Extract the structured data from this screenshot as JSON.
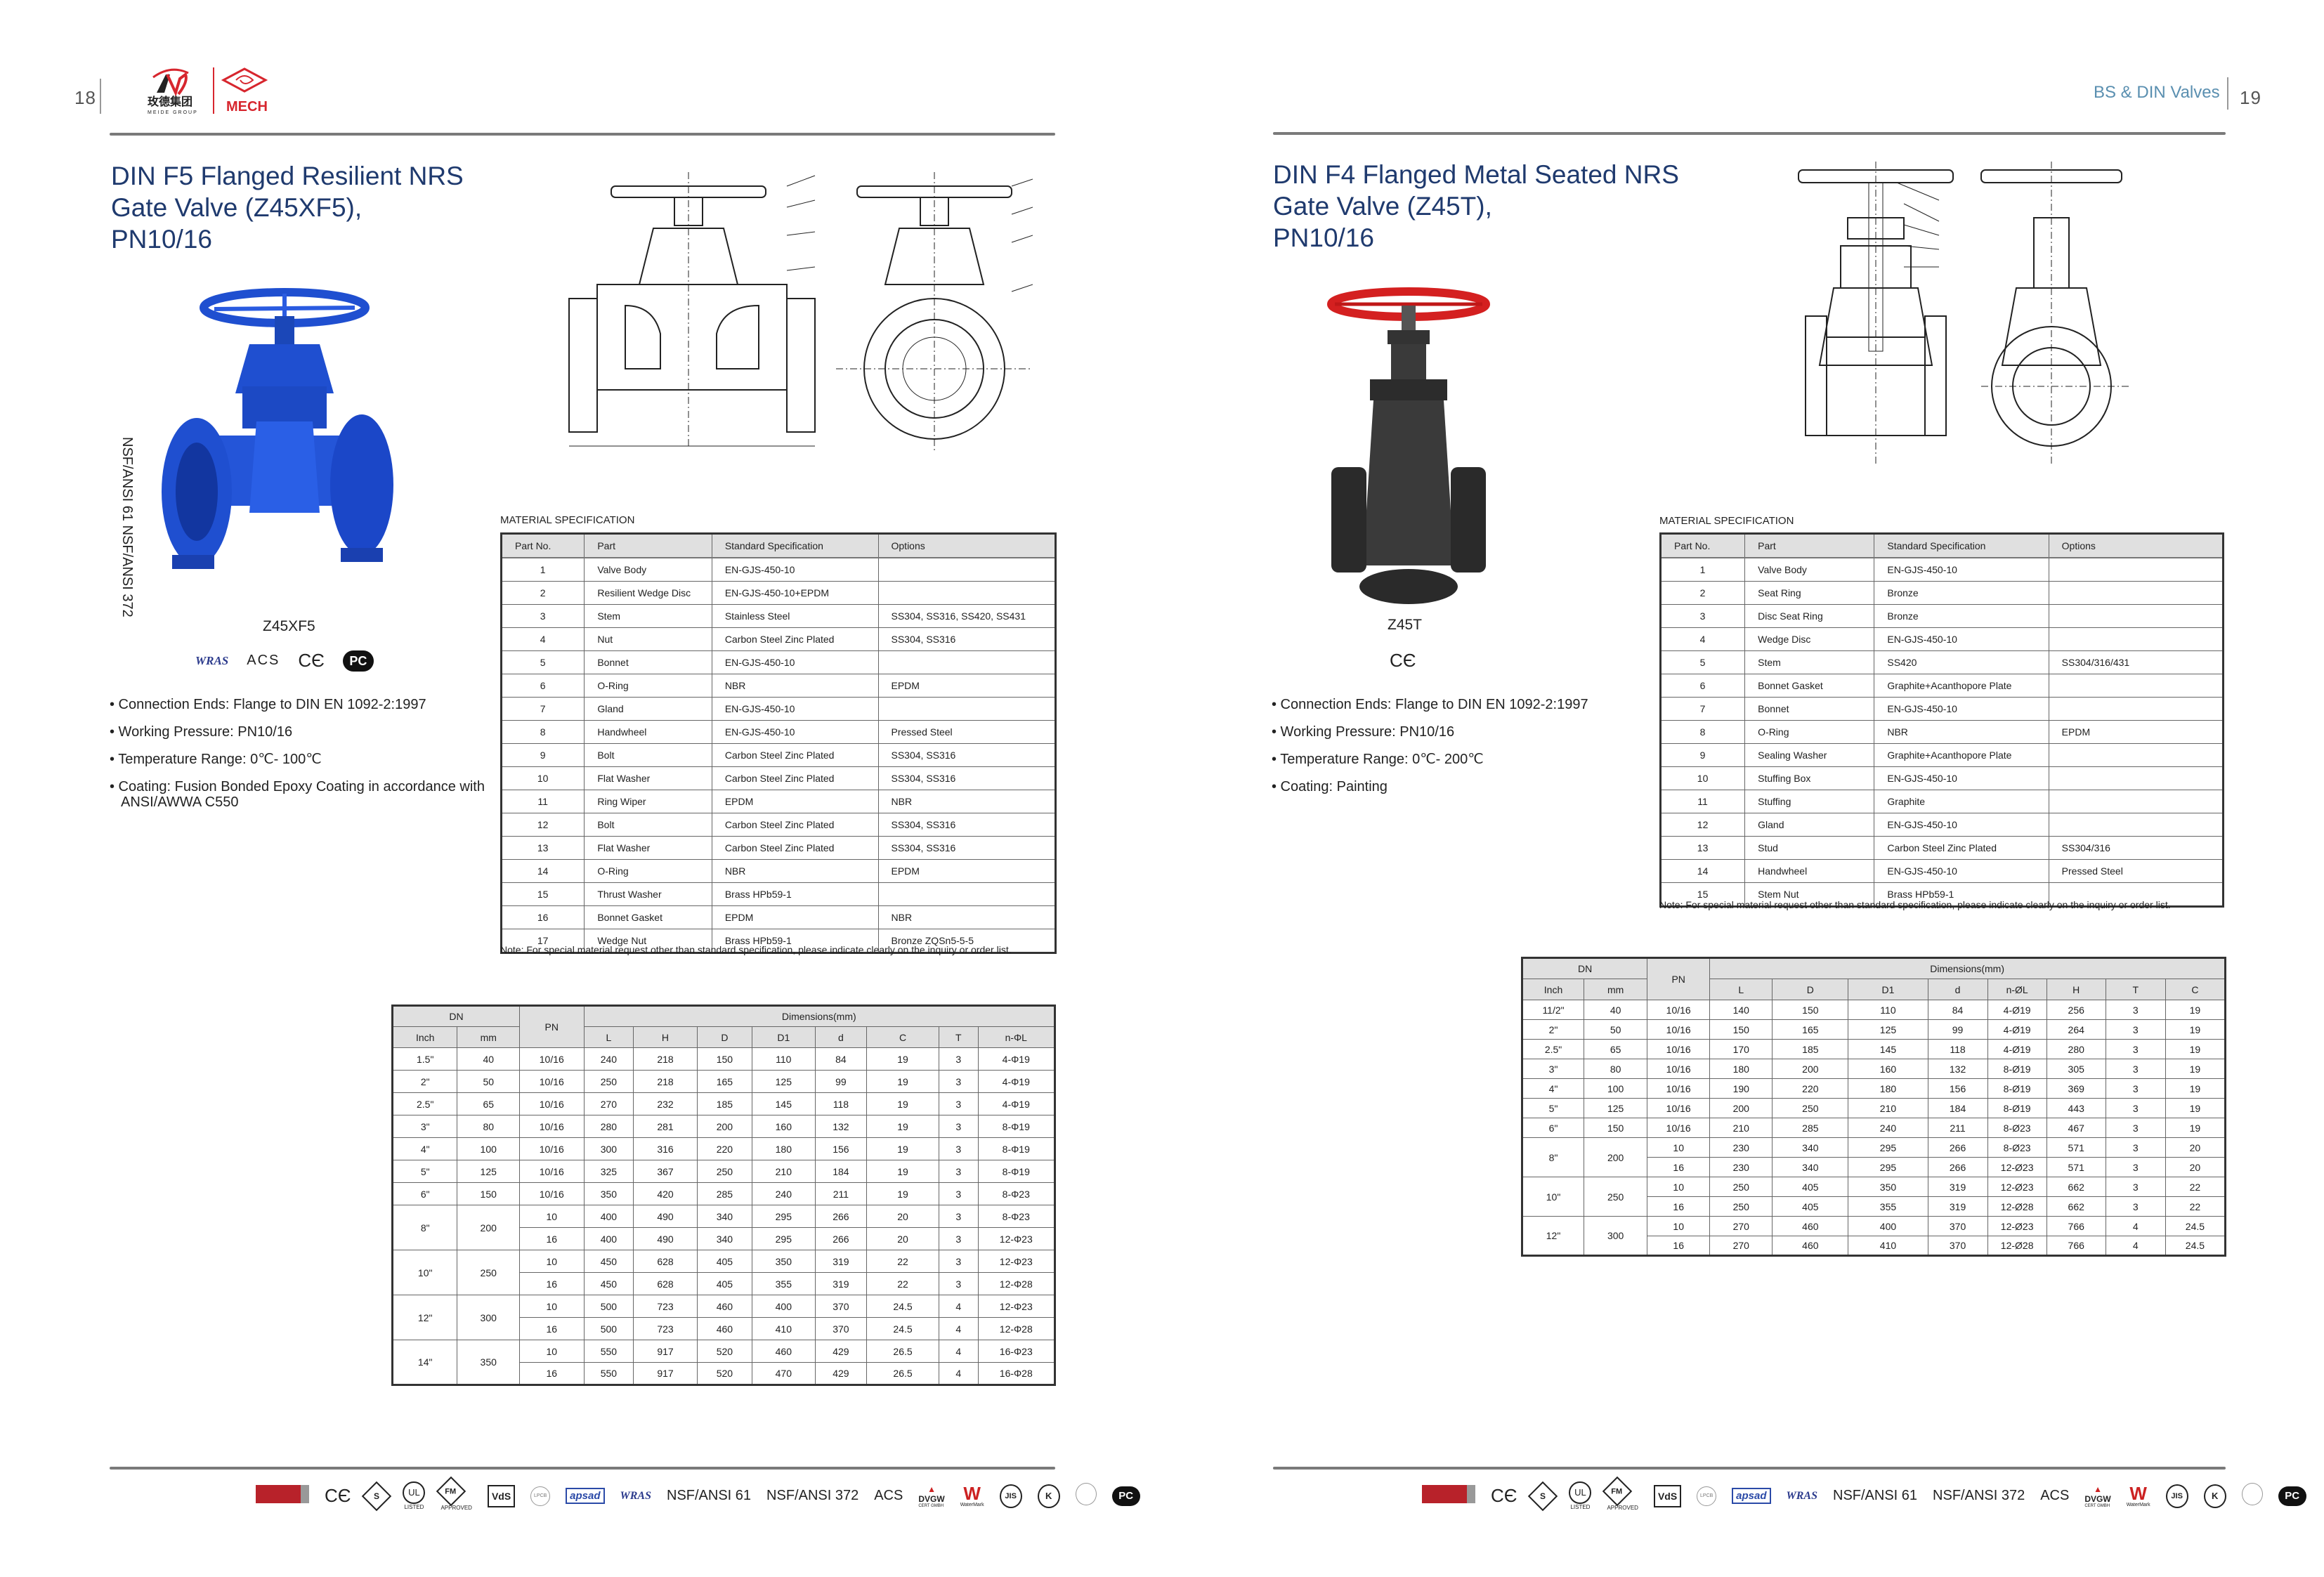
{
  "left_page": {
    "page_number": "18",
    "logo": {
      "group_cn": "玫德集团",
      "group_en": "MEIDE GROUP",
      "brand": "MECH"
    },
    "title_lines": [
      "DIN F5 Flanged Resilient NRS",
      "Gate Valve (Z45XF5),",
      "PN10/16"
    ],
    "vertical_cert_text": "NSF/ANSI 61   NSF/ANSI 372",
    "model_label": "Z45XF5",
    "product_certs": [
      "WRAS",
      "ACS",
      "CE",
      "PCT"
    ],
    "bullets": [
      "• Connection Ends: Flange to DIN EN 1092-2:1997",
      "• Working Pressure: PN10/16",
      "• Temperature Range: 0℃- 100℃",
      "• Coating: Fusion Bonded Epoxy Coating in accordance with",
      "ANSI/AWWA C550"
    ],
    "material_spec": {
      "label": "MATERIAL SPECIFICATION",
      "headers": [
        "Part No.",
        "Part",
        "Standard Specification",
        "Options"
      ],
      "rows": [
        {
          "no": "1",
          "part": "Valve Body",
          "spec": "EN-GJS-450-10",
          "options": ""
        },
        {
          "no": "2",
          "part": "Resilient Wedge Disc",
          "spec": "EN-GJS-450-10+EPDM",
          "options": ""
        },
        {
          "no": "3",
          "part": "Stem",
          "spec": "Stainless Steel",
          "options": "SS304, SS316, SS420, SS431"
        },
        {
          "no": "4",
          "part": "Nut",
          "spec": "Carbon Steel Zinc Plated",
          "options": "SS304, SS316"
        },
        {
          "no": "5",
          "part": "Bonnet",
          "spec": "EN-GJS-450-10",
          "options": ""
        },
        {
          "no": "6",
          "part": "O-Ring",
          "spec": "NBR",
          "options": "EPDM"
        },
        {
          "no": "7",
          "part": "Gland",
          "spec": "EN-GJS-450-10",
          "options": ""
        },
        {
          "no": "8",
          "part": "Handwheel",
          "spec": "EN-GJS-450-10",
          "options": "Pressed Steel"
        },
        {
          "no": "9",
          "part": "Bolt",
          "spec": "Carbon Steel Zinc Plated",
          "options": "SS304, SS316"
        },
        {
          "no": "10",
          "part": "Flat Washer",
          "spec": "Carbon Steel Zinc Plated",
          "options": "SS304, SS316"
        },
        {
          "no": "11",
          "part": "Ring Wiper",
          "spec": "EPDM",
          "options": "NBR"
        },
        {
          "no": "12",
          "part": "Bolt",
          "spec": "Carbon Steel Zinc Plated",
          "options": "SS304, SS316"
        },
        {
          "no": "13",
          "part": "Flat Washer",
          "spec": "Carbon Steel Zinc Plated",
          "options": "SS304, SS316"
        },
        {
          "no": "14",
          "part": "O-Ring",
          "spec": "NBR",
          "options": "EPDM"
        },
        {
          "no": "15",
          "part": "Thrust Washer",
          "spec": "Brass HPb59-1",
          "options": ""
        },
        {
          "no": "16",
          "part": "Bonnet Gasket",
          "spec": "EPDM",
          "options": "NBR"
        },
        {
          "no": "17",
          "part": "Wedge Nut",
          "spec": "Brass HPb59-1",
          "options": "Bronze ZQSn5-5-5"
        }
      ],
      "note": "Note: For special material request other than standard specification, please indicate clearly on the inquiry or order list."
    },
    "dimensions": {
      "dn_label": "DN",
      "pn_label": "PN",
      "dims_label": "Dimensions(mm)",
      "inch_label": "Inch",
      "mm_label": "mm",
      "columns": [
        "L",
        "H",
        "D",
        "D1",
        "d",
        "C",
        "T",
        "n-ΦL"
      ],
      "groups": [
        {
          "inch": "1.5\"",
          "mm": "40",
          "rows": [
            {
              "pn": "10/16",
              "vals": [
                "240",
                "218",
                "150",
                "110",
                "84",
                "19",
                "3",
                "4-Φ19"
              ]
            }
          ]
        },
        {
          "inch": "2\"",
          "mm": "50",
          "rows": [
            {
              "pn": "10/16",
              "vals": [
                "250",
                "218",
                "165",
                "125",
                "99",
                "19",
                "3",
                "4-Φ19"
              ]
            }
          ]
        },
        {
          "inch": "2.5\"",
          "mm": "65",
          "rows": [
            {
              "pn": "10/16",
              "vals": [
                "270",
                "232",
                "185",
                "145",
                "118",
                "19",
                "3",
                "4-Φ19"
              ]
            }
          ]
        },
        {
          "inch": "3\"",
          "mm": "80",
          "rows": [
            {
              "pn": "10/16",
              "vals": [
                "280",
                "281",
                "200",
                "160",
                "132",
                "19",
                "3",
                "8-Φ19"
              ]
            }
          ]
        },
        {
          "inch": "4\"",
          "mm": "100",
          "rows": [
            {
              "pn": "10/16",
              "vals": [
                "300",
                "316",
                "220",
                "180",
                "156",
                "19",
                "3",
                "8-Φ19"
              ]
            }
          ]
        },
        {
          "inch": "5\"",
          "mm": "125",
          "rows": [
            {
              "pn": "10/16",
              "vals": [
                "325",
                "367",
                "250",
                "210",
                "184",
                "19",
                "3",
                "8-Φ19"
              ]
            }
          ]
        },
        {
          "inch": "6\"",
          "mm": "150",
          "rows": [
            {
              "pn": "10/16",
              "vals": [
                "350",
                "420",
                "285",
                "240",
                "211",
                "19",
                "3",
                "8-Φ23"
              ]
            }
          ]
        },
        {
          "inch": "8\"",
          "mm": "200",
          "rows": [
            {
              "pn": "10",
              "vals": [
                "400",
                "490",
                "340",
                "295",
                "266",
                "20",
                "3",
                "8-Φ23"
              ]
            },
            {
              "pn": "16",
              "vals": [
                "400",
                "490",
                "340",
                "295",
                "266",
                "20",
                "3",
                "12-Φ23"
              ]
            }
          ]
        },
        {
          "inch": "10\"",
          "mm": "250",
          "rows": [
            {
              "pn": "10",
              "vals": [
                "450",
                "628",
                "405",
                "350",
                "319",
                "22",
                "3",
                "12-Φ23"
              ]
            },
            {
              "pn": "16",
              "vals": [
                "450",
                "628",
                "405",
                "355",
                "319",
                "22",
                "3",
                "12-Φ28"
              ]
            }
          ]
        },
        {
          "inch": "12\"",
          "mm": "300",
          "rows": [
            {
              "pn": "10",
              "vals": [
                "500",
                "723",
                "460",
                "400",
                "370",
                "24.5",
                "4",
                "12-Φ23"
              ]
            },
            {
              "pn": "16",
              "vals": [
                "500",
                "723",
                "460",
                "410",
                "370",
                "24.5",
                "4",
                "12-Φ28"
              ]
            }
          ]
        },
        {
          "inch": "14\"",
          "mm": "350",
          "rows": [
            {
              "pn": "10",
              "vals": [
                "550",
                "917",
                "520",
                "460",
                "429",
                "26.5",
                "4",
                "16-Φ23"
              ]
            },
            {
              "pn": "16",
              "vals": [
                "550",
                "917",
                "520",
                "470",
                "429",
                "26.5",
                "4",
                "16-Φ28"
              ]
            }
          ]
        }
      ]
    }
  },
  "right_page": {
    "page_number": "19",
    "section_name": "BS & DIN Valves",
    "title_lines": [
      "DIN F4 Flanged Metal Seated NRS",
      "Gate Valve (Z45T),",
      "PN10/16"
    ],
    "model_label": "Z45T",
    "product_certs": [
      "CE"
    ],
    "bullets": [
      "• Connection Ends: Flange to DIN EN 1092-2:1997",
      "• Working Pressure: PN10/16",
      "• Temperature Range: 0℃- 200℃",
      "• Coating: Painting"
    ],
    "material_spec": {
      "label": "MATERIAL SPECIFICATION",
      "headers": [
        "Part No.",
        "Part",
        "Standard Specification",
        "Options"
      ],
      "rows": [
        {
          "no": "1",
          "part": "Valve Body",
          "spec": "EN-GJS-450-10",
          "options": ""
        },
        {
          "no": "2",
          "part": "Seat Ring",
          "spec": "Bronze",
          "options": ""
        },
        {
          "no": "3",
          "part": "Disc Seat Ring",
          "spec": "Bronze",
          "options": ""
        },
        {
          "no": "4",
          "part": "Wedge Disc",
          "spec": "EN-GJS-450-10",
          "options": ""
        },
        {
          "no": "5",
          "part": "Stem",
          "spec": "SS420",
          "options": "SS304/316/431"
        },
        {
          "no": "6",
          "part": "Bonnet Gasket",
          "spec": "Graphite+Acanthopore Plate",
          "options": ""
        },
        {
          "no": "7",
          "part": "Bonnet",
          "spec": "EN-GJS-450-10",
          "options": ""
        },
        {
          "no": "8",
          "part": "O-Ring",
          "spec": "NBR",
          "options": "EPDM"
        },
        {
          "no": "9",
          "part": "Sealing Washer",
          "spec": "Graphite+Acanthopore Plate",
          "options": ""
        },
        {
          "no": "10",
          "part": "Stuffing Box",
          "spec": "EN-GJS-450-10",
          "options": ""
        },
        {
          "no": "11",
          "part": "Stuffing",
          "spec": "Graphite",
          "options": ""
        },
        {
          "no": "12",
          "part": "Gland",
          "spec": "EN-GJS-450-10",
          "options": ""
        },
        {
          "no": "13",
          "part": "Stud",
          "spec": "Carbon Steel  Zinc Plated",
          "options": "SS304/316"
        },
        {
          "no": "14",
          "part": "Handwheel",
          "spec": "EN-GJS-450-10",
          "options": "Pressed Steel"
        },
        {
          "no": "15",
          "part": "Stem Nut",
          "spec": "Brass HPb59-1",
          "options": ""
        }
      ],
      "note": "Note: For special material request other than standard specification, please indicate clearly on the inquiry or order list."
    },
    "dimensions": {
      "dn_label": "DN",
      "pn_label": "PN",
      "dims_label": "Dimensions(mm)",
      "inch_label": "Inch",
      "mm_label": "mm",
      "columns": [
        "L",
        "D",
        "D1",
        "d",
        "n-ØL",
        "H",
        "T",
        "C"
      ],
      "groups": [
        {
          "inch": "11/2\"",
          "mm": "40",
          "rows": [
            {
              "pn": "10/16",
              "vals": [
                "140",
                "150",
                "110",
                "84",
                "4-Ø19",
                "256",
                "3",
                "19"
              ]
            }
          ]
        },
        {
          "inch": "2\"",
          "mm": "50",
          "rows": [
            {
              "pn": "10/16",
              "vals": [
                "150",
                "165",
                "125",
                "99",
                "4-Ø19",
                "264",
                "3",
                "19"
              ]
            }
          ]
        },
        {
          "inch": "2.5\"",
          "mm": "65",
          "rows": [
            {
              "pn": "10/16",
              "vals": [
                "170",
                "185",
                "145",
                "118",
                "4-Ø19",
                "280",
                "3",
                "19"
              ]
            }
          ]
        },
        {
          "inch": "3\"",
          "mm": "80",
          "rows": [
            {
              "pn": "10/16",
              "vals": [
                "180",
                "200",
                "160",
                "132",
                "8-Ø19",
                "305",
                "3",
                "19"
              ]
            }
          ]
        },
        {
          "inch": "4\"",
          "mm": "100",
          "rows": [
            {
              "pn": "10/16",
              "vals": [
                "190",
                "220",
                "180",
                "156",
                "8-Ø19",
                "369",
                "3",
                "19"
              ]
            }
          ]
        },
        {
          "inch": "5\"",
          "mm": "125",
          "rows": [
            {
              "pn": "10/16",
              "vals": [
                "200",
                "250",
                "210",
                "184",
                "8-Ø19",
                "443",
                "3",
                "19"
              ]
            }
          ]
        },
        {
          "inch": "6\"",
          "mm": "150",
          "rows": [
            {
              "pn": "10/16",
              "vals": [
                "210",
                "285",
                "240",
                "211",
                "8-Ø23",
                "467",
                "3",
                "19"
              ]
            }
          ]
        },
        {
          "inch": "8\"",
          "mm": "200",
          "rows": [
            {
              "pn": "10",
              "vals": [
                "230",
                "340",
                "295",
                "266",
                "8-Ø23",
                "571",
                "3",
                "20"
              ]
            },
            {
              "pn": "16",
              "vals": [
                "230",
                "340",
                "295",
                "266",
                "12-Ø23",
                "571",
                "3",
                "20"
              ]
            }
          ]
        },
        {
          "inch": "10\"",
          "mm": "250",
          "rows": [
            {
              "pn": "10",
              "vals": [
                "250",
                "405",
                "350",
                "319",
                "12-Ø23",
                "662",
                "3",
                "22"
              ]
            },
            {
              "pn": "16",
              "vals": [
                "250",
                "405",
                "355",
                "319",
                "12-Ø28",
                "662",
                "3",
                "22"
              ]
            }
          ]
        },
        {
          "inch": "12\"",
          "mm": "300",
          "rows": [
            {
              "pn": "10",
              "vals": [
                "270",
                "460",
                "400",
                "370",
                "12-Ø23",
                "766",
                "4",
                "24.5"
              ]
            },
            {
              "pn": "16",
              "vals": [
                "270",
                "460",
                "410",
                "370",
                "12-Ø28",
                "766",
                "4",
                "24.5"
              ]
            }
          ]
        }
      ]
    }
  },
  "footer_certs": {
    "logos": [
      "Bureau Veritas",
      "CE",
      "TSE",
      "UL LISTED",
      "FM APPROVED",
      "VdS",
      "LPCB",
      "apsad",
      "WRAS"
    ],
    "text_certs": [
      "NSF/ANSI 61",
      "NSF/ANSI 372",
      "ACS"
    ],
    "logos_after": [
      "DVGW CERT GMBH",
      "WaterMark",
      "JIS",
      "KS",
      "ABS",
      "PCT"
    ],
    "ul_listed": "LISTED",
    "fm_approved": "APPROVED",
    "vds": "VdS",
    "apsad": "apsad",
    "wras": "WRAS",
    "dvgw": "DVGW",
    "dvgw_sub": "CERT GMBH"
  },
  "colors": {
    "title_blue": "#1f3a6e",
    "section_blue": "#5a8fb0",
    "brand_red": "#d7262e",
    "valve_blue": "#1f4fd0",
    "handwheel_red": "#d42020",
    "header_gray": "#e0e0e0"
  }
}
